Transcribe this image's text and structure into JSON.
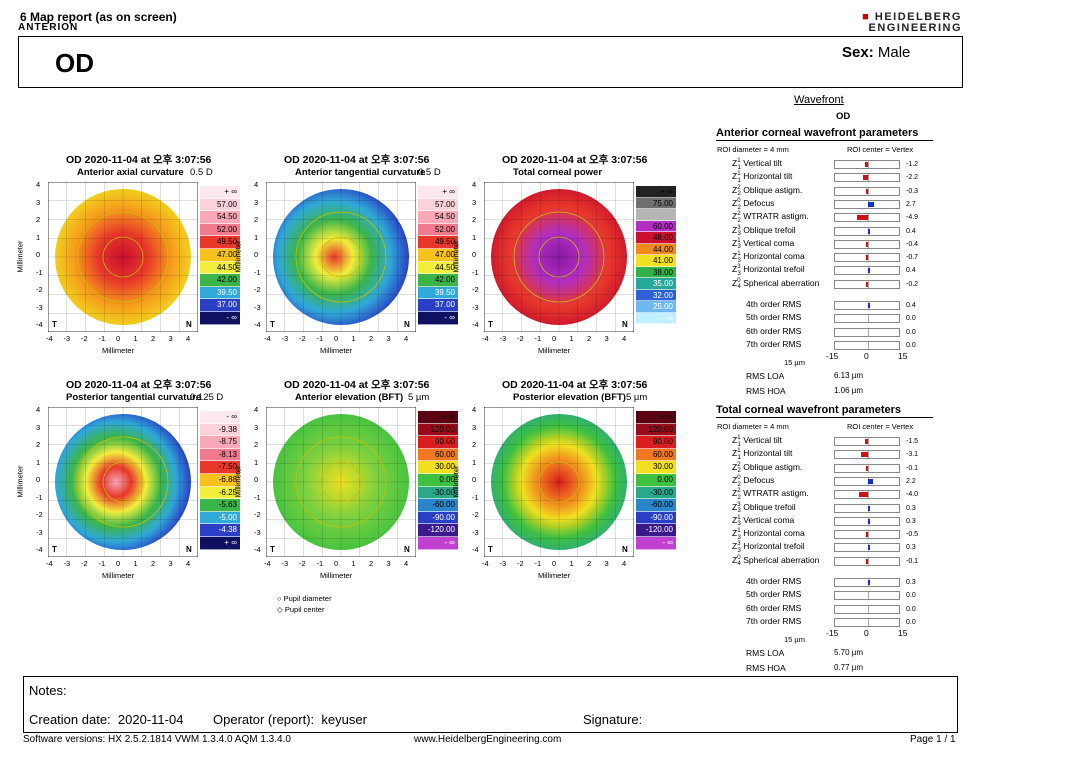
{
  "header": {
    "report_title": "6 Map report (as on screen)",
    "device": "ANTERION",
    "brand_line1": "HEIDELBERG",
    "brand_line2": "ENGINEERING"
  },
  "patient": {
    "eye": "OD",
    "sex_label": "Sex:",
    "sex_value": "Male"
  },
  "maps": [
    {
      "title": "OD  2020-11-04 at 오후 3:07:56",
      "subtitle": "Anterior axial curvature",
      "step": "0.5 D",
      "legend": [
        "+ ∞",
        "57.00",
        "54.50",
        "52.00",
        "49.50",
        "47.00",
        "44.50",
        "42.00",
        "39.50",
        "37.00",
        "- ∞"
      ],
      "legend_colors": [
        "#fde8ee",
        "#fbd2dc",
        "#f7a9b8",
        "#f07b8f",
        "#e8382a",
        "#f6c21b",
        "#f2ee3c",
        "#3bb54a",
        "#30a8d8",
        "#2a3fc4",
        "#101060"
      ],
      "palette": "axial"
    },
    {
      "title": "OD  2020-11-04 at 오후 3:07:56",
      "subtitle": "Anterior tangential curvature",
      "step": "0.5 D",
      "legend": [
        "+ ∞",
        "57.00",
        "54.50",
        "52.00",
        "49.50",
        "47.00",
        "44.50",
        "42.00",
        "39.50",
        "37.00",
        "- ∞"
      ],
      "legend_colors": [
        "#fde8ee",
        "#fbd2dc",
        "#f7a9b8",
        "#f07b8f",
        "#e8382a",
        "#f6c21b",
        "#f2ee3c",
        "#3bb54a",
        "#30a8d8",
        "#2a3fc4",
        "#101060"
      ],
      "palette": "tangential"
    },
    {
      "title": "OD  2020-11-04 at 오후 3:07:56",
      "subtitle": "Total corneal power",
      "step": "",
      "legend": [
        "+ ∞",
        "75.00",
        "",
        "60.00",
        "48.00",
        "44.00",
        "41.00",
        "38.00",
        "35.00",
        "32.00",
        "25.00",
        "- ∞"
      ],
      "legend_colors": [
        "#222222",
        "#6f6f6f",
        "#b5b5b5",
        "#b02ec0",
        "#c8102e",
        "#f08a1a",
        "#f0e020",
        "#2fb24a",
        "#25a89a",
        "#2c62d6",
        "#6fb8f2",
        "#c0f0ff"
      ],
      "palette": "power"
    },
    {
      "title": "OD  2020-11-04 at 오후 3:07:56",
      "subtitle": "Posterior tangential curvature",
      "step": "0.125 D",
      "legend": [
        "- ∞",
        "-9.38",
        "-8.75",
        "-8.13",
        "-7.50",
        "-6.88",
        "-6.25",
        "-5.63",
        "-5.00",
        "-4.38",
        "+ ∞"
      ],
      "legend_colors": [
        "#fde8ee",
        "#fbd2dc",
        "#f7a9b8",
        "#f07b8f",
        "#e8382a",
        "#f6c21b",
        "#f2ee3c",
        "#3bb54a",
        "#30a8d8",
        "#2a3fc4",
        "#101060"
      ],
      "palette": "posterior"
    },
    {
      "title": "OD  2020-11-04 at 오후 3:07:56",
      "subtitle": "Anterior elevation (BFT)",
      "step": "5 µm",
      "legend": [
        "+ ∞",
        "120.00",
        "90.00",
        "60.00",
        "30.00",
        "0.00",
        "-30.00",
        "-60.00",
        "-90.00",
        "-120.00",
        "- ∞"
      ],
      "legend_colors": [
        "#5a0010",
        "#9b0a1a",
        "#d81e1e",
        "#f07820",
        "#f0e020",
        "#3ec040",
        "#2aa88a",
        "#2a86c8",
        "#2a3fc4",
        "#3a1a8a",
        "#c040d0"
      ],
      "palette": "elev_ant"
    },
    {
      "title": "OD  2020-11-04 at 오후 3:07:56",
      "subtitle": "Posterior elevation (BFT)",
      "step": "5 µm",
      "legend": [
        "+ ∞",
        "120.00",
        "90.00",
        "60.00",
        "30.00",
        "0.00",
        "-30.00",
        "-60.00",
        "-90.00",
        "-120.00",
        "- ∞"
      ],
      "legend_colors": [
        "#5a0010",
        "#9b0a1a",
        "#d81e1e",
        "#f07820",
        "#f0e020",
        "#3ec040",
        "#2aa88a",
        "#2a86c8",
        "#2a3fc4",
        "#3a1a8a",
        "#c040d0"
      ],
      "palette": "elev_post"
    }
  ],
  "axes": {
    "ylabel": "Millimeter",
    "xlabel": "Millimeter",
    "ticks": [
      "4",
      "3",
      "2",
      "1",
      "0",
      "-1",
      "-2",
      "-3",
      "-4"
    ],
    "xticks": [
      "-4",
      "-3",
      "-2",
      "-1",
      "0",
      "1",
      "2",
      "3",
      "4"
    ],
    "left_marker": "T",
    "right_marker": "N"
  },
  "pupil_legend": {
    "diameter": "Pupil diameter",
    "center": "Pupil center"
  },
  "wavefront": {
    "title": "Wavefront",
    "eye": "OD",
    "sections": [
      {
        "heading": "Anterior corneal wavefront parameters",
        "roi_diameter": "ROI diameter = 4 mm",
        "roi_center": "ROI center = Vertex",
        "params": [
          {
            "z": "Z",
            "sub": "1",
            "sup": "-1",
            "label": "Vertical tilt",
            "value": "-1.2",
            "num": -1.2,
            "color": "#d01010"
          },
          {
            "z": "Z",
            "sub": "1",
            "sup": "1",
            "label": "Horizontal tilt",
            "value": "-2.2",
            "num": -2.2,
            "color": "#d01010"
          },
          {
            "z": "Z",
            "sub": "2",
            "sup": "-2",
            "label": "Oblique astigm.",
            "value": "-0.3",
            "num": -0.3,
            "color": "#d01010"
          },
          {
            "z": "Z",
            "sub": "2",
            "sup": "0",
            "label": "Defocus",
            "value": "2.7",
            "num": 2.7,
            "color": "#1030d0"
          },
          {
            "z": "Z",
            "sub": "2",
            "sup": "2",
            "label": "WTRATR astigm.",
            "value": "-4.9",
            "num": -4.9,
            "color": "#d01010"
          },
          {
            "z": "Z",
            "sub": "3",
            "sup": "-3",
            "label": "Oblique trefoil",
            "value": "0.4",
            "num": 0.4,
            "color": "#1030d0"
          },
          {
            "z": "Z",
            "sub": "3",
            "sup": "-1",
            "label": "Vertical coma",
            "value": "-0.4",
            "num": -0.4,
            "color": "#d01010"
          },
          {
            "z": "Z",
            "sub": "3",
            "sup": "1",
            "label": "Horizontal coma",
            "value": "-0.7",
            "num": -0.7,
            "color": "#d01010"
          },
          {
            "z": "Z",
            "sub": "3",
            "sup": "3",
            "label": "Horizontal trefoil",
            "value": "0.4",
            "num": 0.4,
            "color": "#1030d0"
          },
          {
            "z": "Z",
            "sub": "4",
            "sup": "0",
            "label": "Spherical aberration",
            "value": "-0.2",
            "num": -0.2,
            "color": "#d01010"
          }
        ],
        "rms": [
          {
            "label": "4th order RMS",
            "value": "0.4",
            "num": 0.4
          },
          {
            "label": "5th order RMS",
            "value": "0.0",
            "num": 0.0
          },
          {
            "label": "6th order RMS",
            "value": "0.0",
            "num": 0.0
          },
          {
            "label": "7th order RMS",
            "value": "0.0",
            "num": 0.0
          }
        ],
        "scale_unit": "15 µm",
        "scale_ticks": [
          "-15",
          "0",
          "15"
        ],
        "rms_loa_label": "RMS LOA",
        "rms_loa_value": "6.13 µm",
        "rms_hoa_label": "RMS HOA",
        "rms_hoa_value": "1.06 µm"
      },
      {
        "heading": "Total corneal wavefront parameters",
        "roi_diameter": "ROI diameter = 4 mm",
        "roi_center": "ROI center = Vertex",
        "params": [
          {
            "z": "Z",
            "sub": "1",
            "sup": "-1",
            "label": "Vertical tilt",
            "value": "-1.5",
            "num": -1.5,
            "color": "#d01010"
          },
          {
            "z": "Z",
            "sub": "1",
            "sup": "1",
            "label": "Horizontal tilt",
            "value": "-3.1",
            "num": -3.1,
            "color": "#d01010"
          },
          {
            "z": "Z",
            "sub": "2",
            "sup": "-2",
            "label": "Oblique astigm.",
            "value": "-0.1",
            "num": -0.1,
            "color": "#d01010"
          },
          {
            "z": "Z",
            "sub": "2",
            "sup": "0",
            "label": "Defocus",
            "value": "2.2",
            "num": 2.2,
            "color": "#1030d0"
          },
          {
            "z": "Z",
            "sub": "2",
            "sup": "2",
            "label": "WTRATR astigm.",
            "value": "-4.0",
            "num": -4.0,
            "color": "#d01010"
          },
          {
            "z": "Z",
            "sub": "3",
            "sup": "-3",
            "label": "Oblique trefoil",
            "value": "0.3",
            "num": 0.3,
            "color": "#1030d0"
          },
          {
            "z": "Z",
            "sub": "3",
            "sup": "-1",
            "label": "Vertical coma",
            "value": "0.3",
            "num": 0.3,
            "color": "#1030d0"
          },
          {
            "z": "Z",
            "sub": "3",
            "sup": "1",
            "label": "Horizontal coma",
            "value": "-0.5",
            "num": -0.5,
            "color": "#d01010"
          },
          {
            "z": "Z",
            "sub": "3",
            "sup": "3",
            "label": "Horizontal trefoil",
            "value": "0.3",
            "num": 0.3,
            "color": "#1030d0"
          },
          {
            "z": "Z",
            "sub": "4",
            "sup": "0",
            "label": "Spherical aberration",
            "value": "-0.1",
            "num": -0.1,
            "color": "#d01010"
          }
        ],
        "rms": [
          {
            "label": "4th order RMS",
            "value": "0.3",
            "num": 0.3
          },
          {
            "label": "5th order RMS",
            "value": "0.0",
            "num": 0.0
          },
          {
            "label": "6th order RMS",
            "value": "0.0",
            "num": 0.0
          },
          {
            "label": "7th order RMS",
            "value": "0.0",
            "num": 0.0
          }
        ],
        "scale_unit": "15 µm",
        "scale_ticks": [
          "-15",
          "0",
          "15"
        ],
        "rms_loa_label": "RMS LOA",
        "rms_loa_value": "5.70 µm",
        "rms_hoa_label": "RMS HOA",
        "rms_hoa_value": "0.77 µm"
      }
    ]
  },
  "notes": {
    "label": "Notes:",
    "creation_label": "Creation date:",
    "creation_value": "2020-11-04",
    "operator_label": "Operator (report):",
    "operator_value": "keyuser",
    "signature_label": "Signature:"
  },
  "footer": {
    "software": "Software versions:  HX 2.5.2.1814 VWM 1.3.4.0  AQM 1.3.4.0",
    "website": "www.HeidelbergEngineering.com",
    "page": "Page  1 / 1"
  }
}
